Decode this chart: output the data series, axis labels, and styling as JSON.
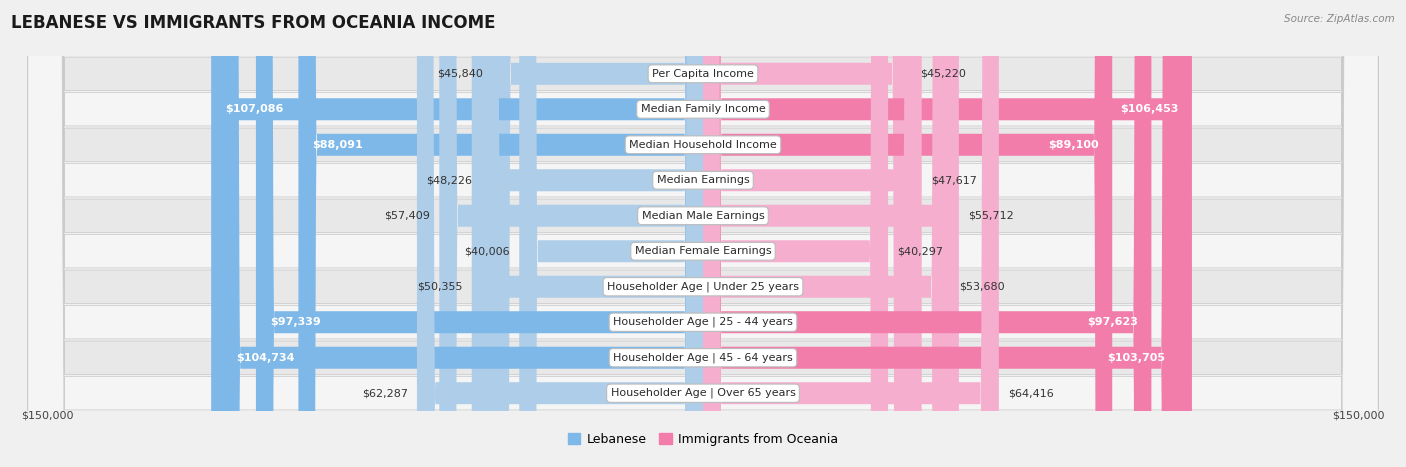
{
  "title": "LEBANESE VS IMMIGRANTS FROM OCEANIA INCOME",
  "source": "Source: ZipAtlas.com",
  "categories": [
    "Per Capita Income",
    "Median Family Income",
    "Median Household Income",
    "Median Earnings",
    "Median Male Earnings",
    "Median Female Earnings",
    "Householder Age | Under 25 years",
    "Householder Age | 25 - 44 years",
    "Householder Age | 45 - 64 years",
    "Householder Age | Over 65 years"
  ],
  "lebanese_values": [
    45840,
    107086,
    88091,
    48226,
    57409,
    40006,
    50355,
    97339,
    104734,
    62287
  ],
  "oceania_values": [
    45220,
    106453,
    89100,
    47617,
    55712,
    40297,
    53680,
    97623,
    103705,
    64416
  ],
  "lebanese_labels": [
    "$45,840",
    "$107,086",
    "$88,091",
    "$48,226",
    "$57,409",
    "$40,006",
    "$50,355",
    "$97,339",
    "$104,734",
    "$62,287"
  ],
  "oceania_labels": [
    "$45,220",
    "$106,453",
    "$89,100",
    "$47,617",
    "$55,712",
    "$40,297",
    "$53,680",
    "$97,623",
    "$103,705",
    "$64,416"
  ],
  "lebanese_color": "#7db8e8",
  "oceania_color": "#f27dab",
  "lebanese_color_light": "#aecde8",
  "oceania_color_light": "#f5aece",
  "max_val": 150000,
  "bg_color": "#f0f0f0",
  "row_bg_even": "#e8e8e8",
  "row_bg_odd": "#f5f5f5",
  "label_inside_threshold": 75000,
  "title_fontsize": 12,
  "bar_label_fontsize": 8,
  "category_fontsize": 8
}
